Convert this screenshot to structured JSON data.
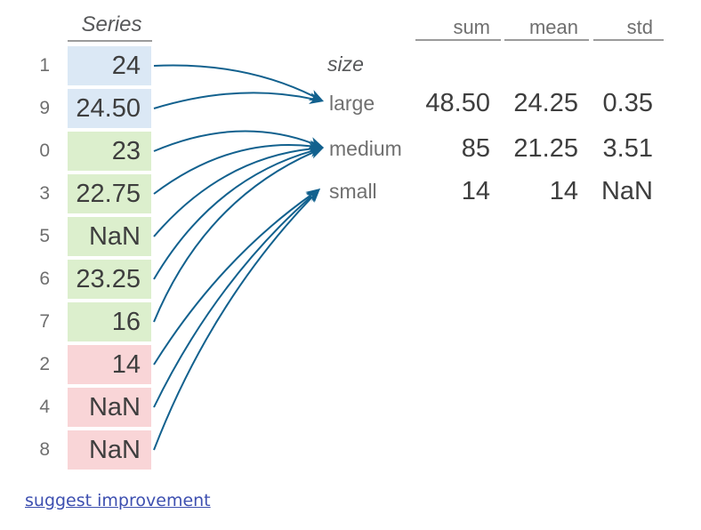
{
  "series": {
    "title": "Series",
    "rows": [
      {
        "index": "1",
        "value": "24",
        "group": "large"
      },
      {
        "index": "9",
        "value": "24.50",
        "group": "large"
      },
      {
        "index": "0",
        "value": "23",
        "group": "medium"
      },
      {
        "index": "3",
        "value": "22.75",
        "group": "medium"
      },
      {
        "index": "5",
        "value": "NaN",
        "group": "medium"
      },
      {
        "index": "6",
        "value": "23.25",
        "group": "medium"
      },
      {
        "index": "7",
        "value": "16",
        "group": "medium"
      },
      {
        "index": "2",
        "value": "14",
        "group": "small"
      },
      {
        "index": "4",
        "value": "NaN",
        "group": "small"
      },
      {
        "index": "8",
        "value": "NaN",
        "group": "small"
      }
    ]
  },
  "groups": {
    "key_label": "size",
    "items": [
      {
        "name": "large",
        "sum": "48.50",
        "mean": "24.25",
        "std": "0.35"
      },
      {
        "name": "medium",
        "sum": "85",
        "mean": "21.25",
        "std": "3.51"
      },
      {
        "name": "small",
        "sum": "14",
        "mean": "14",
        "std": "NaN"
      }
    ]
  },
  "table": {
    "columns": [
      "sum",
      "mean",
      "std"
    ]
  },
  "link": {
    "label": "suggest improvement"
  },
  "colors": {
    "large_cell": "#dbe8f5",
    "medium_cell": "#dcefcd",
    "small_cell": "#f9d5d7",
    "arrow": "#12618e",
    "link": "#3d4fb0"
  }
}
